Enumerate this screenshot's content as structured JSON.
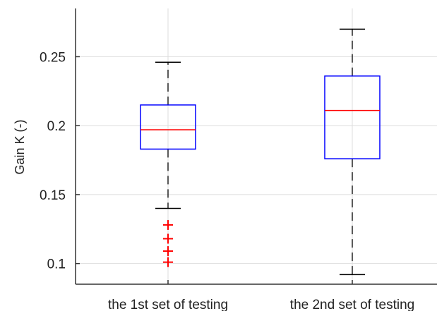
{
  "chart_data": {
    "type": "boxplot",
    "ylabel": "Gain K (-)",
    "ylim": [
      0.085,
      0.285
    ],
    "yticks": [
      0.1,
      0.15,
      0.2,
      0.25
    ],
    "ytick_labels": [
      "0.1",
      "0.15",
      "0.2",
      "0.25"
    ],
    "grid": true,
    "categories": [
      "the 1st set of testing",
      "the 2nd set of testing"
    ],
    "boxes": [
      {
        "name": "the 1st set of testing",
        "whisker_low": 0.14,
        "q1": 0.183,
        "median": 0.197,
        "q3": 0.215,
        "whisker_high": 0.246,
        "outliers": [
          0.128,
          0.118,
          0.109,
          0.101
        ]
      },
      {
        "name": "the 2nd set of testing",
        "whisker_low": 0.092,
        "q1": 0.176,
        "median": 0.211,
        "q3": 0.236,
        "whisker_high": 0.27,
        "outliers": []
      }
    ],
    "colors": {
      "box": "#0000ff",
      "median": "#ff0000",
      "whisker": "#000000",
      "outlier": "#ff0000",
      "grid": "#dddddd",
      "axis": "#333333"
    }
  }
}
